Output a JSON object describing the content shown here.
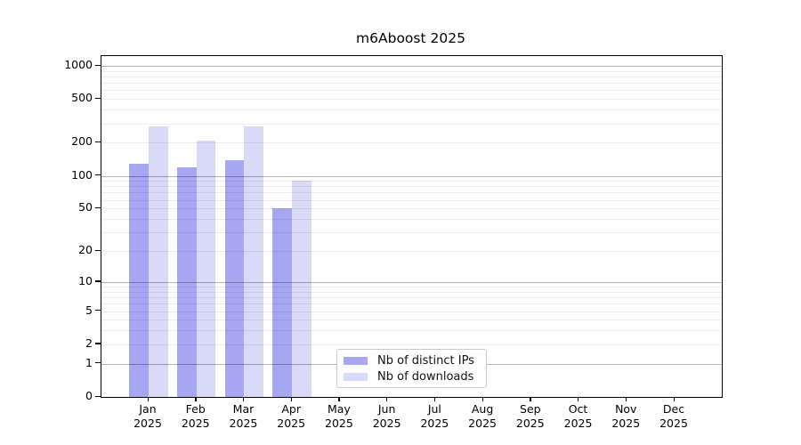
{
  "title": "m6Aboost 2025",
  "chart_data": {
    "type": "bar",
    "title": "m6Aboost 2025",
    "categories": [
      "Jan 2025",
      "Feb 2025",
      "Mar 2025",
      "Apr 2025",
      "May 2025",
      "Jun 2025",
      "Jul 2025",
      "Aug 2025",
      "Sep 2025",
      "Oct 2025",
      "Nov 2025",
      "Dec 2025"
    ],
    "series": [
      {
        "name": "Nb of distinct IPs",
        "color": "#a6a6f2",
        "values": [
          130,
          120,
          140,
          50,
          0,
          0,
          0,
          0,
          0,
          0,
          0,
          0
        ]
      },
      {
        "name": "Nb of downloads",
        "color": "#d9d9f8",
        "values": [
          280,
          210,
          280,
          90,
          0,
          0,
          0,
          0,
          0,
          0,
          0,
          0
        ]
      }
    ],
    "xlabel": "",
    "ylabel": "",
    "yscale": "log1p",
    "ylim": [
      0,
      1000
    ],
    "yticks": [
      1000,
      500,
      200,
      100,
      50,
      20,
      10,
      5,
      2,
      1,
      0
    ],
    "grid": "horizontal, minor lines at 2-9 per decade, major lines at powers of 10, drawn over bars",
    "legend_position": "inside-bottom-center"
  },
  "colors": {
    "bar_distinct_ips": "#a6a6f2",
    "bar_downloads": "#d9d9f8",
    "grid_major": "#b3b3b3",
    "grid_minor": "#ebebeb",
    "axis_box": "#000000",
    "legend_border": "#c9c9c9",
    "background": "#ffffff"
  }
}
